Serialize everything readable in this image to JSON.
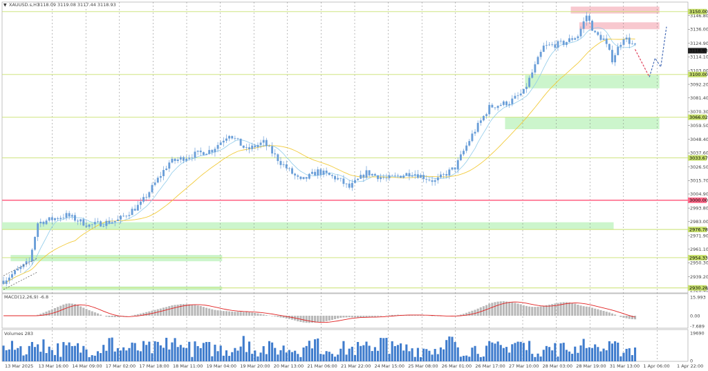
{
  "header": {
    "symbol": "XAUUSD.s,H1",
    "ohlc": "3118.09 3119.08 3117.44 3118.93"
  },
  "chart_data": {
    "type": "candlestick",
    "symbol": "XAUUSD.s",
    "timeframe": "H1",
    "price_axis": {
      "ylim": [
        2926.3,
        3157.6
      ],
      "ticks": [
        "3157.60",
        "3146.80",
        "3136.00",
        "3124.90",
        "3114.10",
        "3103.00",
        "3092.20",
        "3081.40",
        "3070.30",
        "3059.50",
        "3048.40",
        "3037.60",
        "3026.50",
        "3015.70",
        "3004.90",
        "2993.80",
        "2983.00",
        "2971.90",
        "2961.10",
        "2950.30",
        "2939.20",
        "2928.40"
      ],
      "current_price": "3118.93"
    },
    "time_labels": [
      "13 Mar 2025",
      "13 Mar 16:00",
      "14 Mar 09:00",
      "17 Mar 02:00",
      "17 Mar 18:00",
      "18 Mar 11:00",
      "19 Mar 04:00",
      "19 Mar 20:00",
      "20 Mar 13:00",
      "21 Mar 06:00",
      "21 Mar 22:00",
      "24 Mar 15:00",
      "25 Mar 08:00",
      "26 Mar 01:00",
      "26 Mar 17:00",
      "27 Mar 10:00",
      "28 Mar 03:00",
      "28 Mar 19:00",
      "31 Mar 13:00",
      "1 Apr 06:00",
      "1 Apr 22:00"
    ],
    "levels": [
      {
        "price": 3150.0,
        "label": "3150.00",
        "color": "#c8e06e"
      },
      {
        "price": 3100.0,
        "label": "3100.00",
        "color": "#c8e06e"
      },
      {
        "price": 3066.02,
        "label": "3066.02",
        "color": "#c8e06e"
      },
      {
        "price": 3033.67,
        "label": "3033.67",
        "color": "#c8e06e"
      },
      {
        "price": 3000.0,
        "label": "3000.00",
        "color": "#ff6a8a"
      },
      {
        "price": 2976.78,
        "label": "2976.78",
        "color": "#c8e06e"
      },
      {
        "price": 2954.33,
        "label": "2954.33",
        "color": "#c8e06e"
      },
      {
        "price": 2930.28,
        "label": "2930.28",
        "color": "#c8e06e"
      }
    ],
    "zones": [
      {
        "from_bar": 0,
        "to_bar": 214,
        "y1": 2982.5,
        "y2": 2977.0,
        "color": "#ccf5cc"
      },
      {
        "from_bar": 3,
        "to_bar": 77,
        "y1": 2956.5,
        "y2": 2951.5,
        "color": "#ccf5cc"
      },
      {
        "from_bar": 0,
        "to_bar": 77,
        "y1": 2931.5,
        "y2": 2928.4,
        "color": "#ccf5cc"
      },
      {
        "from_bar": 183,
        "to_bar": 230,
        "y1": 3099.5,
        "y2": 3089.0,
        "color": "#ccf5cc"
      },
      {
        "from_bar": 176,
        "to_bar": 230,
        "y1": 3066.0,
        "y2": 3056.5,
        "color": "#ccf5cc"
      },
      {
        "from_bar": 199,
        "to_bar": 230,
        "y1": 3154.0,
        "y2": 3148.5,
        "color": "#f8c8cf"
      },
      {
        "from_bar": 202,
        "to_bar": 230,
        "y1": 3141.5,
        "y2": 3136.0,
        "color": "#f8c8cf"
      }
    ],
    "anchors": [
      [
        0,
        2936
      ],
      [
        9,
        2951
      ],
      [
        12,
        2982
      ],
      [
        22,
        2988
      ],
      [
        30,
        2980
      ],
      [
        40,
        2984
      ],
      [
        48,
        2997
      ],
      [
        58,
        3030
      ],
      [
        66,
        3036
      ],
      [
        73,
        3040
      ],
      [
        79,
        3053
      ],
      [
        85,
        3040
      ],
      [
        91,
        3046
      ],
      [
        97,
        3030
      ],
      [
        104,
        3015
      ],
      [
        110,
        3023
      ],
      [
        117,
        3017
      ],
      [
        121,
        3010
      ],
      [
        127,
        3022
      ],
      [
        134,
        3017
      ],
      [
        143,
        3022
      ],
      [
        151,
        3015
      ],
      [
        158,
        3026
      ],
      [
        164,
        3052
      ],
      [
        170,
        3074
      ],
      [
        177,
        3078
      ],
      [
        182,
        3086
      ],
      [
        189,
        3122
      ],
      [
        196,
        3125
      ],
      [
        201,
        3131
      ],
      [
        204,
        3147
      ],
      [
        207,
        3132
      ],
      [
        210,
        3128
      ],
      [
        213,
        3112
      ],
      [
        217,
        3130
      ],
      [
        221,
        3122
      ]
    ],
    "projection": {
      "down": [
        [
          221,
          3120
        ],
        [
          226,
          3098
        ]
      ],
      "up": [
        [
          226,
          3098
        ],
        [
          228,
          3113
        ],
        [
          230,
          3106
        ],
        [
          232,
          3138
        ]
      ]
    },
    "ma_fast_color": "#8fcbea",
    "ma_slow_color": "#f2cb3c",
    "candle_color": "#6a9ed8",
    "macd": {
      "label": "MACD(12,26,9) -6.8",
      "ticks": [
        "15.993",
        "0.00",
        "-7.689"
      ],
      "bar_color": "#b8b8b8",
      "signal_color": "#e02020"
    },
    "volumes": {
      "label": "Volumes 283",
      "ticks": [
        "19690",
        "0"
      ],
      "bar_color": "#3f7ccd"
    },
    "grid": true
  }
}
